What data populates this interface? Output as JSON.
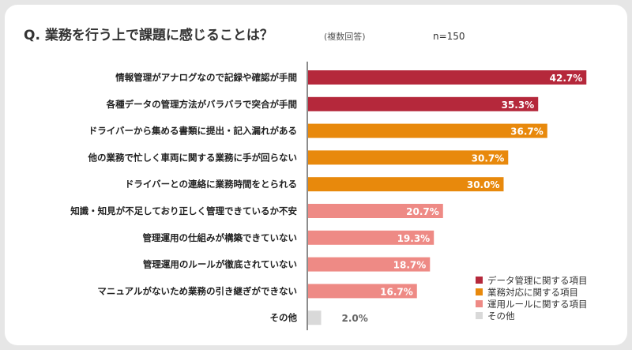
{
  "chart_data": {
    "type": "bar",
    "orientation": "horizontal",
    "title": "Q. 業務を行う上で課題に感じることは？",
    "subtitle": "(複数回答)",
    "sample_size": "n=150",
    "xlim": [
      0,
      100
    ],
    "grid": false,
    "legend_placement": "bottom-right",
    "value_suffix": "%",
    "categories": [
      "情報管理がアナログなので記録や確認が手間",
      "各種データの管理方法がバラバラで突合が手間",
      "ドライバーから集める書類に提出・記入漏れがある",
      "他の業務で忙しく車両に関する業務に手が回らない",
      "ドライバーとの連絡に業務時間をとられる",
      "知識・知見が不足しており正しく管理できているか不安",
      "管理運用の仕組みが構築できていない",
      "管理運用のルールが徹底されていない",
      "マニュアルがないため業務の引き継ぎができない",
      "その他"
    ],
    "values": [
      42.7,
      35.3,
      36.7,
      30.7,
      30.0,
      20.7,
      19.3,
      18.7,
      16.7,
      2.0
    ],
    "value_labels": [
      "42.7%",
      "35.3%",
      "36.7%",
      "30.7%",
      "30.0%",
      "20.7%",
      "19.3%",
      "18.7%",
      "16.7%",
      "2.0%"
    ],
    "groups": [
      "data",
      "data",
      "business",
      "business",
      "business",
      "operation",
      "operation",
      "operation",
      "operation",
      "other"
    ],
    "legend": [
      {
        "key": "data",
        "label": "データ管理に関する項目",
        "color": "#b5283b"
      },
      {
        "key": "business",
        "label": "業務対応に関する項目",
        "color": "#e8890c"
      },
      {
        "key": "operation",
        "label": "運用ルールに関する項目",
        "color": "#ee8a85"
      },
      {
        "key": "other",
        "label": "その他",
        "color": "#d9d9d9"
      }
    ]
  }
}
